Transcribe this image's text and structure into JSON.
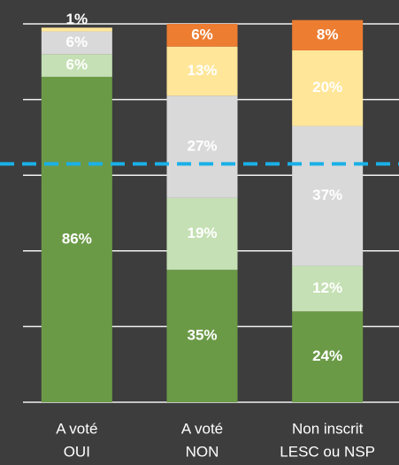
{
  "chart_data": {
    "type": "stacked_bar",
    "categories": [
      [
        "A voté",
        "OUI"
      ],
      [
        "A voté",
        "NON"
      ],
      [
        "Non inscrit",
        "LESC ou NSP"
      ]
    ],
    "series": [
      {
        "color": "#6b9a47",
        "values": [
          86,
          35,
          24
        ],
        "value_labels": [
          "86%",
          "35%",
          "24%"
        ]
      },
      {
        "color": "#c5e0b4",
        "values": [
          6,
          19,
          12
        ],
        "value_labels": [
          "6%",
          "19%",
          "12%"
        ]
      },
      {
        "color": "#d9d9d9",
        "values": [
          6,
          27,
          37
        ],
        "value_labels": [
          "6%",
          "27%",
          "37%"
        ]
      },
      {
        "color": "#ffe699",
        "values": [
          1,
          13,
          20
        ],
        "value_labels": [
          "1%",
          "13%",
          "20%"
        ]
      },
      {
        "color": "#ed7d31",
        "values": [
          null,
          6,
          8
        ],
        "value_labels": [
          null,
          "6%",
          "8%"
        ]
      }
    ],
    "ylim": [
      0,
      100
    ],
    "yticks": [
      0,
      20,
      40,
      60,
      80,
      100
    ],
    "grid": true,
    "reference_line": {
      "value": 63,
      "color": "#1ab0e8"
    }
  }
}
